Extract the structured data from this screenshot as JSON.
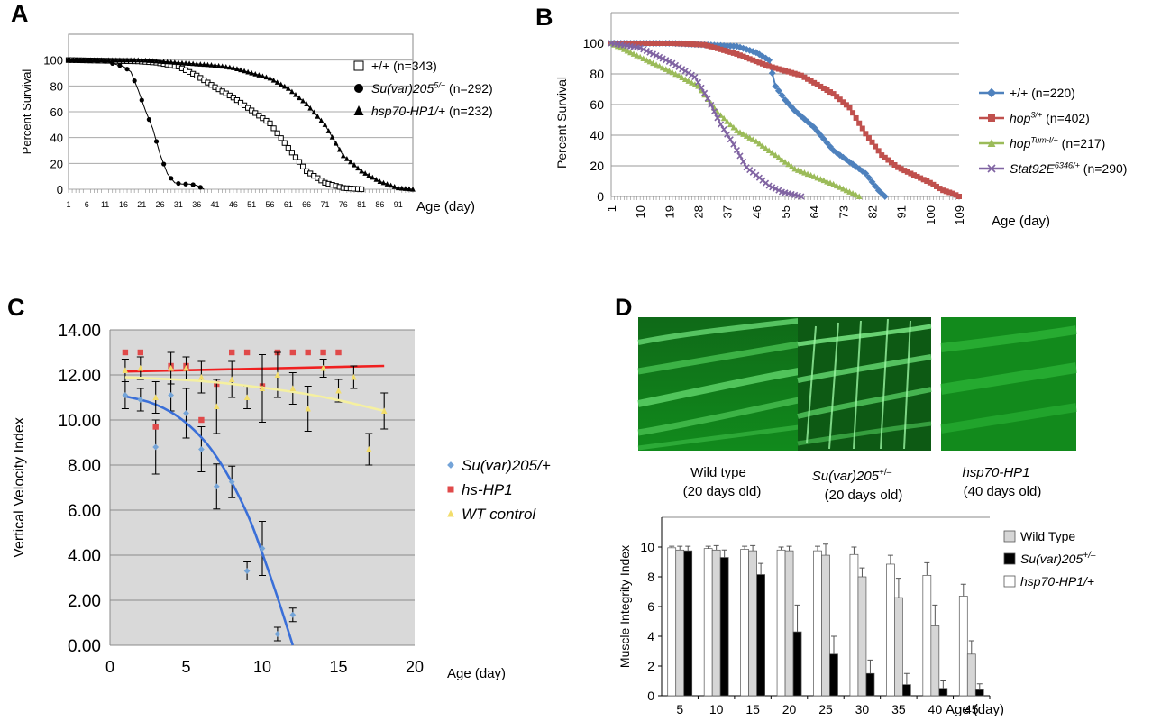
{
  "panels": {
    "a": "A",
    "b": "B",
    "c": "C",
    "d": "D"
  },
  "chart_data": [
    {
      "panel": "A",
      "type": "line",
      "ylabel": "Percent Survival",
      "xlabel": "Age (day)",
      "xlim": [
        1,
        95
      ],
      "ylim": [
        0,
        120
      ],
      "y_ticks": [
        0,
        20,
        40,
        60,
        80,
        100
      ],
      "x_ticks": [
        1,
        6,
        11,
        16,
        21,
        26,
        31,
        36,
        41,
        46,
        51,
        56,
        61,
        66,
        71,
        76,
        81,
        86,
        91
      ],
      "grid": true,
      "legend_position": "right",
      "series": [
        {
          "label": "+/+",
          "label_italic": false,
          "sup": "",
          "n": "(n=343)",
          "marker": "square-open",
          "color": "#000000",
          "x": [
            1,
            20,
            25,
            31,
            36,
            41,
            46,
            51,
            56,
            61,
            66,
            71,
            76,
            81
          ],
          "y": [
            100,
            99,
            98,
            95,
            88,
            79,
            71,
            61,
            51,
            32,
            14,
            5,
            1,
            0
          ]
        },
        {
          "label": "Su(var)205",
          "label_italic": true,
          "sup": "5/+",
          "n": "(n=292)",
          "marker": "circle",
          "color": "#000000",
          "x": [
            1,
            11,
            16,
            18,
            20,
            22,
            24,
            26,
            28,
            30,
            32,
            34,
            36,
            38
          ],
          "y": [
            100,
            99,
            95,
            91,
            77,
            61,
            47,
            27,
            12,
            5,
            4,
            4,
            3,
            0
          ]
        },
        {
          "label": "hsp70-HP1/+",
          "label_italic": true,
          "sup": "",
          "n": "(n=232)",
          "marker": "triangle",
          "color": "#000000",
          "x": [
            1,
            21,
            31,
            41,
            46,
            51,
            56,
            61,
            66,
            71,
            76,
            81,
            86,
            91,
            95
          ],
          "y": [
            100,
            100,
            98,
            96,
            94,
            90,
            86,
            78,
            66,
            50,
            26,
            14,
            6,
            1,
            0
          ]
        }
      ]
    },
    {
      "panel": "B",
      "type": "line",
      "ylabel": "Percent Survival",
      "xlabel": "Age (day)",
      "xlim": [
        1,
        109
      ],
      "ylim": [
        0,
        120
      ],
      "y_ticks": [
        0,
        20,
        40,
        60,
        80,
        100
      ],
      "x_ticks": [
        1,
        10,
        19,
        28,
        37,
        46,
        55,
        64,
        73,
        82,
        91,
        100,
        109
      ],
      "grid": true,
      "legend_position": "right",
      "series": [
        {
          "label": "+/+",
          "label_italic": false,
          "sup": "",
          "n": "(n=220)",
          "marker": "diamond",
          "color": "#4e81bd",
          "x": [
            1,
            20,
            30,
            40,
            46,
            50,
            52,
            55,
            58,
            64,
            70,
            76,
            80,
            84,
            86
          ],
          "y": [
            100,
            100,
            99,
            98,
            94,
            89,
            72,
            63,
            56,
            45,
            30,
            21,
            15,
            4,
            0
          ]
        },
        {
          "label": "hop",
          "label_italic": true,
          "sup": "3/+",
          "n": "(n=402)",
          "marker": "square",
          "color": "#c0504d",
          "x": [
            1,
            20,
            30,
            40,
            50,
            60,
            70,
            75,
            80,
            85,
            90,
            95,
            100,
            104,
            107,
            109
          ],
          "y": [
            100,
            100,
            99,
            93,
            85,
            79,
            67,
            58,
            41,
            27,
            19,
            14,
            9,
            4,
            2,
            0
          ]
        },
        {
          "label": "hop",
          "label_italic": true,
          "sup": "Tum-l/+",
          "n": "(n=217)",
          "marker": "triangle",
          "color": "#9bbb59",
          "x": [
            1,
            10,
            20,
            28,
            34,
            40,
            46,
            52,
            58,
            64,
            70,
            76,
            78
          ],
          "y": [
            100,
            91,
            81,
            72,
            55,
            43,
            36,
            27,
            18,
            13,
            8,
            2,
            0
          ]
        },
        {
          "label": "Stat92E",
          "label_italic": true,
          "sup": "6346/+",
          "n": "(n=290)",
          "marker": "x",
          "color": "#8064a2",
          "x": [
            1,
            10,
            20,
            27,
            31,
            35,
            39,
            43,
            46,
            50,
            54,
            58,
            60
          ],
          "y": [
            100,
            97,
            87,
            78,
            64,
            47,
            34,
            19,
            14,
            7,
            3,
            1,
            0
          ]
        }
      ]
    },
    {
      "panel": "C",
      "type": "scatter",
      "ylabel": "Vertical Velocity Index",
      "xlabel": "Age (day)",
      "xlim": [
        0,
        20
      ],
      "ylim": [
        0,
        14
      ],
      "y_ticks": [
        "0.00",
        "2.00",
        "4.00",
        "6.00",
        "8.00",
        "10.00",
        "12.00",
        "14.00"
      ],
      "x_ticks": [
        0,
        5,
        10,
        15,
        20
      ],
      "grid": true,
      "legend_position": "right",
      "series": [
        {
          "label": "Su(var)205/+",
          "color": "#74a4d8",
          "trend_color": "#3a6fd8",
          "x": [
            1,
            2,
            3,
            4,
            5,
            6,
            7,
            8,
            9,
            10,
            11,
            12
          ],
          "y": [
            11.1,
            10.9,
            8.8,
            11.1,
            10.3,
            8.7,
            7.05,
            7.25,
            3.3,
            4.3,
            0.5,
            1.35
          ],
          "err": [
            0.6,
            0.5,
            1.2,
            0.7,
            1.1,
            1.0,
            1.0,
            0.7,
            0.4,
            1.2,
            0.3,
            0.3
          ],
          "trend": [
            [
              1,
              11.05
            ],
            [
              3,
              10.75
            ],
            [
              5,
              9.95
            ],
            [
              7,
              8.5
            ],
            [
              9,
              5.95
            ],
            [
              10,
              4.1
            ],
            [
              11,
              2.15
            ],
            [
              12,
              0
            ]
          ]
        },
        {
          "label": "hs-HP1",
          "color": "#e04a4a",
          "trend_color": "#f02020",
          "x": [
            1,
            2,
            3,
            4,
            5,
            6,
            7,
            8,
            9,
            10,
            11,
            12,
            13,
            14,
            15
          ],
          "y": [
            13.0,
            13.0,
            9.7,
            12.4,
            12.4,
            10.0,
            11.6,
            13.0,
            13.0,
            11.5,
            13.0,
            13.0,
            13.0,
            13.0,
            13.0
          ],
          "err": [
            0,
            0,
            0,
            0,
            0,
            0,
            0,
            0,
            0,
            0,
            0,
            0,
            0,
            0,
            0
          ],
          "trend": [
            [
              1,
              12.15
            ],
            [
              18,
              12.4
            ]
          ]
        },
        {
          "label": "WT control",
          "color": "#f2dd6b",
          "trend_color": "#f5f0a0",
          "x": [
            1,
            2,
            3,
            4,
            5,
            6,
            7,
            8,
            9,
            10,
            11,
            12,
            13,
            14,
            15,
            16,
            17,
            18
          ],
          "y": [
            12.2,
            12.3,
            11.0,
            12.3,
            12.3,
            11.9,
            10.6,
            11.8,
            11.0,
            11.4,
            12.0,
            11.4,
            10.5,
            12.3,
            11.3,
            11.9,
            8.7,
            10.4
          ],
          "err": [
            0.5,
            0.5,
            0.7,
            0.7,
            0.5,
            0.7,
            1.2,
            0.8,
            0.5,
            1.5,
            1.0,
            0.7,
            1.0,
            0.4,
            0.5,
            0.5,
            0.7,
            0.8
          ],
          "trend": [
            [
              1,
              11.9
            ],
            [
              6,
              11.75
            ],
            [
              10,
              11.45
            ],
            [
              14,
              11.05
            ],
            [
              18,
              10.4
            ]
          ]
        }
      ]
    },
    {
      "panel": "D",
      "type": "bar",
      "ylabel": "Muscle Integrity Index",
      "xlabel": "Age (day)",
      "categories": [
        "5",
        "10",
        "15",
        "20",
        "25",
        "30",
        "35",
        "40",
        "45"
      ],
      "ylim": [
        0,
        12
      ],
      "y_ticks": [
        0,
        2,
        4,
        6,
        8,
        10
      ],
      "legend_position": "right",
      "series": [
        {
          "label": "hsp70-HP1/+",
          "label_italic": true,
          "sup": "",
          "color": "#ffffff",
          "values": [
            9.95,
            9.9,
            9.85,
            9.8,
            9.75,
            9.5,
            8.85,
            8.1,
            6.7
          ],
          "err": [
            0.1,
            0.15,
            0.2,
            0.2,
            0.3,
            0.5,
            0.6,
            0.85,
            0.8
          ]
        },
        {
          "label": "Wild Type",
          "label_italic": false,
          "sup": "",
          "color": "#d6d6d6",
          "values": [
            9.8,
            9.8,
            9.75,
            9.75,
            9.45,
            8.0,
            6.6,
            4.7,
            2.8
          ],
          "err": [
            0.25,
            0.3,
            0.35,
            0.3,
            0.75,
            0.6,
            1.3,
            1.4,
            0.9
          ]
        },
        {
          "label": "Su(var)205",
          "label_italic": true,
          "sup": "+/–",
          "color": "#000000",
          "values": [
            9.75,
            9.3,
            8.15,
            4.3,
            2.8,
            1.5,
            0.75,
            0.5,
            0.4
          ],
          "err": [
            0.3,
            0.5,
            0.75,
            1.8,
            1.2,
            0.9,
            0.75,
            0.5,
            0.4
          ]
        }
      ],
      "legend_order": [
        1,
        2,
        0
      ]
    }
  ],
  "micrographs": [
    {
      "name": "Wild type",
      "name_italic": false,
      "sup": "",
      "age": "(20 days old)",
      "pattern": "smooth-fibers"
    },
    {
      "name": "Su(var)205",
      "name_italic": true,
      "sup": "+/–",
      "age": "(20 days old)",
      "pattern": "disrupted-fibers"
    },
    {
      "name": "hsp70-HP1",
      "name_italic": true,
      "sup": "",
      "age": "(40 days old)",
      "pattern": "dim-fibers"
    }
  ]
}
